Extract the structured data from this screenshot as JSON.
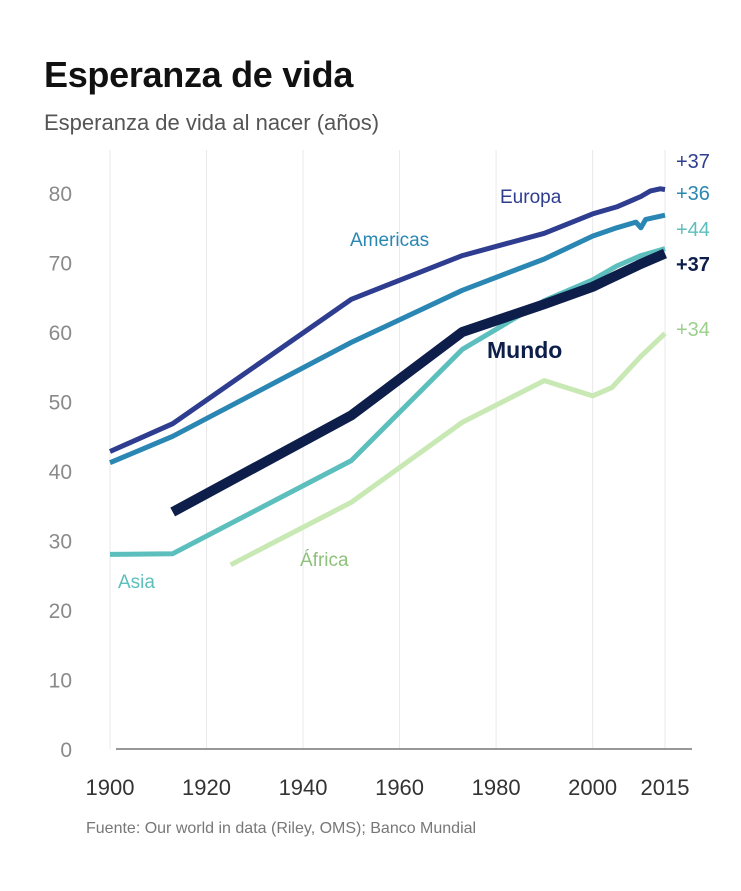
{
  "header": {
    "title": "Esperanza de vida",
    "subtitle": "Esperanza de vida al nacer (años)"
  },
  "footer": {
    "source": "Fuente: Our world in data (Riley, OMS); Banco Mundial"
  },
  "colors": {
    "europa": "#2e3d8f",
    "americas": "#2a86b3",
    "asia": "#5cbfbd",
    "africa": "#c8e8b4",
    "mundo": "#0d1e4a",
    "grid": "#e9e9e9",
    "axis": "#777777",
    "tick_text": "#8a8a8a",
    "year_text": "#333333"
  },
  "chart_data": {
    "type": "line",
    "title": "Esperanza de vida",
    "subtitle": "Esperanza de vida al nacer (años)",
    "xlabel": "",
    "ylabel": "",
    "xlim": [
      1900,
      2018
    ],
    "ylim": [
      0,
      85
    ],
    "x_ticks": [
      1900,
      1920,
      1940,
      1960,
      1980,
      2000,
      2015
    ],
    "x_tick_labels": [
      "1900",
      "1920",
      "1940",
      "1960",
      "1980",
      "2000",
      "2015"
    ],
    "y_ticks": [
      0,
      10,
      20,
      30,
      40,
      50,
      60,
      70,
      80
    ],
    "y_tick_labels": [
      "0",
      "10",
      "20",
      "30",
      "40",
      "50",
      "60",
      "70",
      "80"
    ],
    "grid": "vertical",
    "legend": "inline labels",
    "series": [
      {
        "key": "europa",
        "name": "Europa",
        "change": "+37",
        "points": [
          [
            1900,
            42.8
          ],
          [
            1913,
            46.8
          ],
          [
            1950,
            64.7
          ],
          [
            1973,
            71.0
          ],
          [
            1990,
            74.2
          ],
          [
            2000,
            77.0
          ],
          [
            2005,
            78.0
          ],
          [
            2010,
            79.5
          ],
          [
            2012,
            80.3
          ],
          [
            2014,
            80.6
          ],
          [
            2015,
            80.5
          ]
        ]
      },
      {
        "key": "americas",
        "name": "Americas",
        "change": "+36",
        "points": [
          [
            1900,
            41.2
          ],
          [
            1913,
            45.0
          ],
          [
            1950,
            58.5
          ],
          [
            1973,
            66.0
          ],
          [
            1990,
            70.5
          ],
          [
            2000,
            73.8
          ],
          [
            2005,
            75.0
          ],
          [
            2009,
            75.8
          ],
          [
            2010,
            75.0
          ],
          [
            2011,
            76.2
          ],
          [
            2015,
            76.8
          ]
        ]
      },
      {
        "key": "asia",
        "name": "Asia",
        "change": "+44",
        "points": [
          [
            1900,
            28.0
          ],
          [
            1913,
            28.1
          ],
          [
            1950,
            41.5
          ],
          [
            1973,
            57.5
          ],
          [
            1990,
            64.5
          ],
          [
            2000,
            67.5
          ],
          [
            2005,
            69.5
          ],
          [
            2010,
            71.0
          ],
          [
            2015,
            72.0
          ]
        ]
      },
      {
        "key": "africa",
        "name": "África",
        "change": "+34",
        "points": [
          [
            1925,
            26.5
          ],
          [
            1950,
            35.5
          ],
          [
            1973,
            47.0
          ],
          [
            1990,
            53.0
          ],
          [
            2000,
            50.8
          ],
          [
            2004,
            52.0
          ],
          [
            2010,
            56.5
          ],
          [
            2015,
            59.8
          ]
        ]
      },
      {
        "key": "mundo",
        "name": "Mundo",
        "change": "+37",
        "points": [
          [
            1913,
            34.1
          ],
          [
            1950,
            48.0
          ],
          [
            1973,
            60.0
          ],
          [
            1990,
            64.0
          ],
          [
            2000,
            66.5
          ],
          [
            2003,
            67.5
          ],
          [
            2010,
            69.8
          ],
          [
            2015,
            71.3
          ]
        ]
      }
    ]
  }
}
